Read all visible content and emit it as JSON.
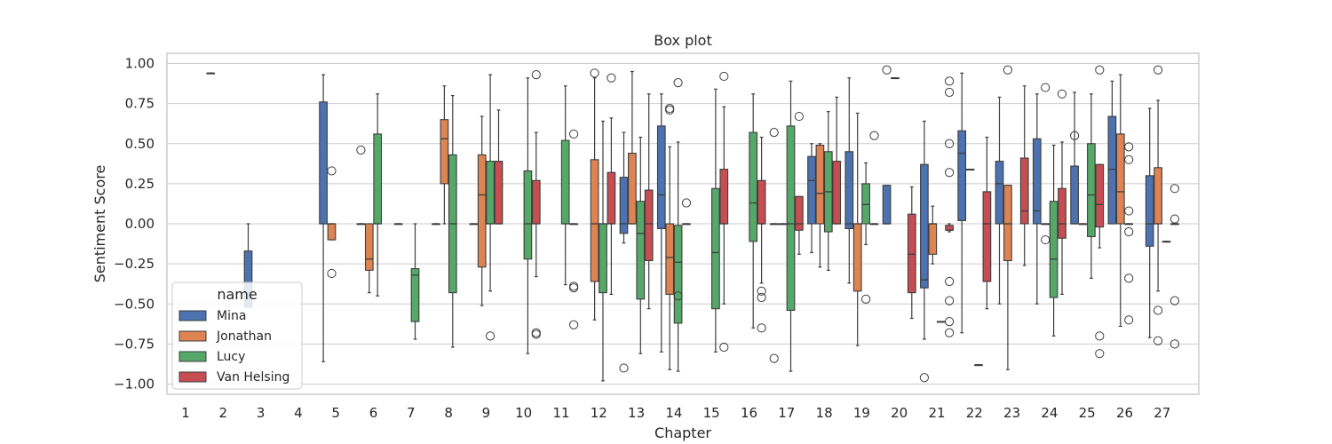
{
  "chart_data": {
    "type": "box",
    "title": "Box plot",
    "xlabel": "Chapter",
    "ylabel": "Sentiment Score",
    "ylim": [
      -1.1,
      1.07
    ],
    "yticks": [
      1.0,
      0.75,
      0.5,
      0.25,
      0.0,
      -0.25,
      -0.5,
      -0.75,
      -1.0
    ],
    "ytick_labels": [
      "1.00",
      "0.75",
      "0.50",
      "0.25",
      "0.00",
      "−0.25",
      "−0.50",
      "−0.75",
      "−1.00"
    ],
    "grid": true,
    "categories": [
      "1",
      "2",
      "3",
      "4",
      "5",
      "6",
      "7",
      "8",
      "9",
      "10",
      "11",
      "12",
      "13",
      "14",
      "15",
      "16",
      "17",
      "18",
      "19",
      "20",
      "21",
      "22",
      "23",
      "24",
      "25",
      "26",
      "27"
    ],
    "legend": {
      "title": "name",
      "placement": "lower-left"
    },
    "series": [
      {
        "name": "Mina",
        "color": "#4c72b0",
        "boxes": [
          null,
          {
            "c": 2,
            "q1": 0.94,
            "med": 0.94,
            "q3": 0.94,
            "lo": 0.94,
            "hi": 0.94,
            "out": []
          },
          {
            "c": 3,
            "q1": -0.52,
            "med": -0.37,
            "q3": -0.17,
            "lo": -0.52,
            "hi": 0.0,
            "out": []
          },
          null,
          {
            "c": 5,
            "q1": 0.0,
            "med": 0.0,
            "q3": 0.76,
            "lo": -0.86,
            "hi": 0.93,
            "out": []
          },
          {
            "c": 6,
            "q1": 0.0,
            "med": 0.0,
            "q3": 0.0,
            "lo": 0.0,
            "hi": 0.0,
            "out": [
              0.46
            ]
          },
          {
            "c": 7,
            "q1": 0.0,
            "med": 0.0,
            "q3": 0.0,
            "lo": 0.0,
            "hi": 0.0,
            "out": []
          },
          {
            "c": 8,
            "q1": 0.0,
            "med": 0.0,
            "q3": 0.0,
            "lo": 0.0,
            "hi": 0.0,
            "out": []
          },
          {
            "c": 9,
            "q1": 0.0,
            "med": 0.0,
            "q3": 0.0,
            "lo": 0.0,
            "hi": 0.0,
            "out": []
          },
          null,
          null,
          null,
          {
            "c": 13,
            "q1": -0.06,
            "med": 0.0,
            "q3": 0.29,
            "lo": -0.12,
            "hi": 0.57,
            "out": [
              -0.9
            ]
          },
          {
            "c": 14,
            "q1": -0.03,
            "med": 0.18,
            "q3": 0.61,
            "lo": -0.8,
            "hi": 0.81,
            "out": []
          },
          null,
          null,
          {
            "c": 17,
            "q1": 0.0,
            "med": 0.0,
            "q3": 0.0,
            "lo": 0.0,
            "hi": 0.0,
            "out": [
              0.57,
              -0.84
            ]
          },
          {
            "c": 18,
            "q1": 0.0,
            "med": 0.27,
            "q3": 0.42,
            "lo": -0.18,
            "hi": 0.5,
            "out": []
          },
          {
            "c": 19,
            "q1": -0.03,
            "med": 0.0,
            "q3": 0.45,
            "lo": -0.37,
            "hi": 0.91,
            "out": []
          },
          {
            "c": 20,
            "q1": 0.0,
            "med": 0.0,
            "q3": 0.24,
            "lo": 0.0,
            "hi": 0.24,
            "out": [
              0.96
            ]
          },
          {
            "c": 21,
            "q1": -0.4,
            "med": -0.35,
            "q3": 0.37,
            "lo": -0.72,
            "hi": 0.64,
            "out": [
              -0.96
            ]
          },
          {
            "c": 22,
            "q1": 0.02,
            "med": 0.44,
            "q3": 0.58,
            "lo": -0.68,
            "hi": 0.94,
            "out": []
          },
          {
            "c": 23,
            "q1": 0.0,
            "med": 0.25,
            "q3": 0.39,
            "lo": -0.5,
            "hi": 0.79,
            "out": []
          },
          {
            "c": 24,
            "q1": 0.0,
            "med": 0.08,
            "q3": 0.53,
            "lo": -0.5,
            "hi": 0.81,
            "out": []
          },
          {
            "c": 25,
            "q1": 0.0,
            "med": 0.0,
            "q3": 0.36,
            "lo": 0.0,
            "hi": 0.82,
            "out": [
              0.55
            ]
          },
          {
            "c": 26,
            "q1": 0.0,
            "med": 0.34,
            "q3": 0.67,
            "lo": 0.0,
            "hi": 0.89,
            "out": []
          },
          {
            "c": 27,
            "q1": -0.14,
            "med": 0.0,
            "q3": 0.3,
            "lo": -0.71,
            "hi": 0.72,
            "out": []
          }
        ]
      },
      {
        "name": "Jonathan",
        "color": "#dd8452",
        "boxes": [
          null,
          null,
          null,
          null,
          {
            "c": 5,
            "q1": -0.1,
            "med": 0.0,
            "q3": 0.0,
            "lo": -0.1,
            "hi": 0.0,
            "out": [
              0.33,
              -0.31
            ]
          },
          {
            "c": 6,
            "q1": -0.29,
            "med": -0.22,
            "q3": 0.0,
            "lo": -0.43,
            "hi": 0.0,
            "out": []
          },
          null,
          {
            "c": 8,
            "q1": 0.25,
            "med": 0.53,
            "q3": 0.65,
            "lo": 0.0,
            "hi": 0.86,
            "out": []
          },
          {
            "c": 9,
            "q1": -0.27,
            "med": 0.18,
            "q3": 0.43,
            "lo": -0.51,
            "hi": 0.67,
            "out": []
          },
          null,
          null,
          {
            "c": 12,
            "q1": -0.36,
            "med": 0.0,
            "q3": 0.4,
            "lo": -0.6,
            "hi": 0.91,
            "out": [
              0.94
            ]
          },
          {
            "c": 13,
            "q1": 0.0,
            "med": 0.0,
            "q3": 0.44,
            "lo": 0.0,
            "hi": 0.95,
            "out": []
          },
          {
            "c": 14,
            "q1": -0.44,
            "med": -0.21,
            "q3": 0.0,
            "lo": -0.91,
            "hi": 0.48,
            "out": [
              0.72,
              0.71
            ]
          },
          null,
          null,
          {
            "c": 17,
            "q1": 0.0,
            "med": 0.0,
            "q3": 0.0,
            "lo": 0.0,
            "hi": 0.0,
            "out": []
          },
          {
            "c": 18,
            "q1": 0.0,
            "med": 0.19,
            "q3": 0.49,
            "lo": -0.27,
            "hi": 0.5,
            "out": []
          },
          {
            "c": 19,
            "q1": -0.42,
            "med": 0.0,
            "q3": 0.0,
            "lo": -0.76,
            "hi": 0.69,
            "out": []
          },
          {
            "c": 20,
            "q1": 0.91,
            "med": 0.91,
            "q3": 0.91,
            "lo": 0.91,
            "hi": 0.91,
            "out": []
          },
          {
            "c": 21,
            "q1": -0.19,
            "med": 0.0,
            "q3": 0.0,
            "lo": -0.25,
            "hi": 0.11,
            "out": []
          },
          {
            "c": 22,
            "q1": 0.34,
            "med": 0.34,
            "q3": 0.34,
            "lo": 0.34,
            "hi": 0.34,
            "out": []
          },
          {
            "c": 23,
            "q1": -0.23,
            "med": 0.0,
            "q3": 0.24,
            "lo": -0.91,
            "hi": 0.24,
            "out": [
              0.96
            ]
          },
          {
            "c": 24,
            "q1": 0.0,
            "med": 0.0,
            "q3": 0.0,
            "lo": 0.0,
            "hi": 0.0,
            "out": [
              0.85,
              -0.1
            ]
          },
          {
            "c": 25,
            "q1": 0.0,
            "med": 0.0,
            "q3": 0.0,
            "lo": 0.0,
            "hi": 0.0,
            "out": []
          },
          {
            "c": 26,
            "q1": 0.0,
            "med": 0.2,
            "q3": 0.56,
            "lo": -0.64,
            "hi": 0.93,
            "out": []
          },
          {
            "c": 27,
            "q1": 0.0,
            "med": 0.0,
            "q3": 0.35,
            "lo": -0.42,
            "hi": 0.77,
            "out": [
              0.96,
              -0.54,
              -0.73
            ]
          }
        ]
      },
      {
        "name": "Lucy",
        "color": "#55a868",
        "boxes": [
          null,
          null,
          null,
          null,
          null,
          {
            "c": 6,
            "q1": 0.0,
            "med": 0.0,
            "q3": 0.56,
            "lo": -0.45,
            "hi": 0.81,
            "out": []
          },
          {
            "c": 7,
            "q1": -0.61,
            "med": -0.32,
            "q3": -0.28,
            "lo": -0.72,
            "hi": 0.0,
            "out": []
          },
          {
            "c": 8,
            "q1": -0.43,
            "med": 0.0,
            "q3": 0.43,
            "lo": -0.77,
            "hi": 0.8,
            "out": []
          },
          {
            "c": 9,
            "q1": 0.0,
            "med": 0.0,
            "q3": 0.39,
            "lo": -0.42,
            "hi": 0.93,
            "out": [
              -0.7
            ]
          },
          {
            "c": 10,
            "q1": -0.22,
            "med": 0.0,
            "q3": 0.33,
            "lo": -0.81,
            "hi": 0.91,
            "out": []
          },
          {
            "c": 11,
            "q1": 0.0,
            "med": 0.0,
            "q3": 0.52,
            "lo": -0.38,
            "hi": 0.86,
            "out": []
          },
          {
            "c": 12,
            "q1": -0.43,
            "med": 0.0,
            "q3": 0.0,
            "lo": -0.98,
            "hi": 0.64,
            "out": []
          },
          {
            "c": 13,
            "q1": -0.47,
            "med": -0.06,
            "q3": 0.14,
            "lo": -0.81,
            "hi": 0.54,
            "out": []
          },
          {
            "c": 14,
            "q1": -0.62,
            "med": -0.24,
            "q3": -0.01,
            "lo": -0.92,
            "hi": 0.51,
            "out": [
              0.88,
              -0.45
            ]
          },
          {
            "c": 15,
            "q1": -0.53,
            "med": -0.18,
            "q3": 0.22,
            "lo": -0.8,
            "hi": 0.84,
            "out": []
          },
          {
            "c": 16,
            "q1": -0.11,
            "med": 0.13,
            "q3": 0.57,
            "lo": -0.65,
            "hi": 0.81,
            "out": []
          },
          {
            "c": 17,
            "q1": -0.54,
            "med": 0.0,
            "q3": 0.61,
            "lo": -0.92,
            "hi": 0.89,
            "out": []
          },
          {
            "c": 18,
            "q1": -0.05,
            "med": 0.2,
            "q3": 0.45,
            "lo": -0.29,
            "hi": 0.7,
            "out": []
          },
          {
            "c": 19,
            "q1": 0.0,
            "med": 0.12,
            "q3": 0.25,
            "lo": -0.13,
            "hi": 0.38,
            "out": [
              -0.47
            ]
          },
          null,
          {
            "c": 21,
            "q1": -0.61,
            "med": -0.61,
            "q3": -0.61,
            "lo": -0.61,
            "hi": -0.61,
            "out": []
          },
          {
            "c": 22,
            "q1": -0.88,
            "med": -0.88,
            "q3": -0.88,
            "lo": -0.88,
            "hi": -0.88,
            "out": []
          },
          null,
          {
            "c": 24,
            "q1": -0.46,
            "med": -0.22,
            "q3": 0.14,
            "lo": -0.7,
            "hi": 0.49,
            "out": []
          },
          {
            "c": 25,
            "q1": -0.08,
            "med": 0.18,
            "q3": 0.5,
            "lo": -0.34,
            "hi": 0.81,
            "out": []
          },
          {
            "c": 26,
            "q1": 0.0,
            "med": 0.0,
            "q3": 0.0,
            "lo": 0.0,
            "hi": 0.0,
            "out": [
              0.48,
              0.4,
              0.08,
              -0.05,
              -0.34,
              -0.6
            ]
          },
          {
            "c": 27,
            "q1": -0.11,
            "med": -0.11,
            "q3": -0.11,
            "lo": -0.11,
            "hi": -0.11,
            "out": []
          }
        ]
      },
      {
        "name": "Van Helsing",
        "color": "#c44e52",
        "boxes": [
          null,
          null,
          null,
          null,
          null,
          null,
          null,
          null,
          {
            "c": 9,
            "q1": 0.0,
            "med": 0.0,
            "q3": 0.39,
            "lo": 0.0,
            "hi": 0.71,
            "out": []
          },
          {
            "c": 10,
            "q1": 0.0,
            "med": 0.0,
            "q3": 0.27,
            "lo": -0.33,
            "hi": 0.57,
            "out": [
              0.93,
              -0.68,
              -0.69
            ]
          },
          {
            "c": 11,
            "q1": 0.0,
            "med": 0.0,
            "q3": 0.0,
            "lo": 0.0,
            "hi": 0.0,
            "out": [
              0.56,
              -0.39,
              -0.4,
              -0.63
            ]
          },
          {
            "c": 12,
            "q1": 0.0,
            "med": 0.0,
            "q3": 0.32,
            "lo": -0.44,
            "hi": 0.66,
            "out": [
              0.91
            ]
          },
          {
            "c": 13,
            "q1": -0.23,
            "med": 0.0,
            "q3": 0.21,
            "lo": -0.53,
            "hi": 0.81,
            "out": []
          },
          {
            "c": 14,
            "q1": 0.0,
            "med": 0.0,
            "q3": 0.0,
            "lo": 0.0,
            "hi": 0.0,
            "out": [
              0.13
            ]
          },
          {
            "c": 15,
            "q1": 0.0,
            "med": 0.0,
            "q3": 0.34,
            "lo": -0.5,
            "hi": 0.73,
            "out": [
              0.92,
              -0.77
            ]
          },
          {
            "c": 16,
            "q1": 0.0,
            "med": 0.0,
            "q3": 0.27,
            "lo": -0.37,
            "hi": 0.54,
            "out": [
              -0.42,
              -0.46,
              -0.65
            ]
          },
          {
            "c": 17,
            "q1": -0.04,
            "med": 0.0,
            "q3": 0.17,
            "lo": -0.19,
            "hi": 0.17,
            "out": [
              0.67
            ]
          },
          {
            "c": 18,
            "q1": 0.0,
            "med": 0.0,
            "q3": 0.39,
            "lo": 0.0,
            "hi": 0.79,
            "out": []
          },
          {
            "c": 19,
            "q1": 0.0,
            "med": 0.0,
            "q3": 0.0,
            "lo": 0.0,
            "hi": 0.0,
            "out": [
              0.55
            ]
          },
          {
            "c": 20,
            "q1": -0.43,
            "med": -0.19,
            "q3": 0.06,
            "lo": -0.59,
            "hi": 0.23,
            "out": []
          },
          {
            "c": 21,
            "q1": -0.04,
            "med": -0.04,
            "q3": -0.01,
            "lo": -0.05,
            "hi": 0.0,
            "out": [
              0.89,
              0.82,
              0.5,
              0.32,
              -0.36,
              -0.48,
              -0.61,
              -0.68
            ]
          },
          {
            "c": 22,
            "q1": -0.36,
            "med": 0.0,
            "q3": 0.2,
            "lo": -0.53,
            "hi": 0.54,
            "out": []
          },
          {
            "c": 23,
            "q1": 0.0,
            "med": 0.08,
            "q3": 0.41,
            "lo": -0.26,
            "hi": 0.86,
            "out": []
          },
          {
            "c": 24,
            "q1": -0.09,
            "med": 0.0,
            "q3": 0.22,
            "lo": -0.44,
            "hi": 0.51,
            "out": [
              0.81
            ]
          },
          {
            "c": 25,
            "q1": -0.02,
            "med": 0.12,
            "q3": 0.37,
            "lo": -0.15,
            "hi": 0.37,
            "out": [
              0.96,
              -0.7,
              -0.81
            ]
          },
          null,
          {
            "c": 27,
            "q1": 0.0,
            "med": 0.0,
            "q3": 0.0,
            "lo": 0.0,
            "hi": 0.0,
            "out": [
              0.22,
              0.03,
              -0.48,
              -0.75
            ]
          }
        ]
      }
    ]
  }
}
